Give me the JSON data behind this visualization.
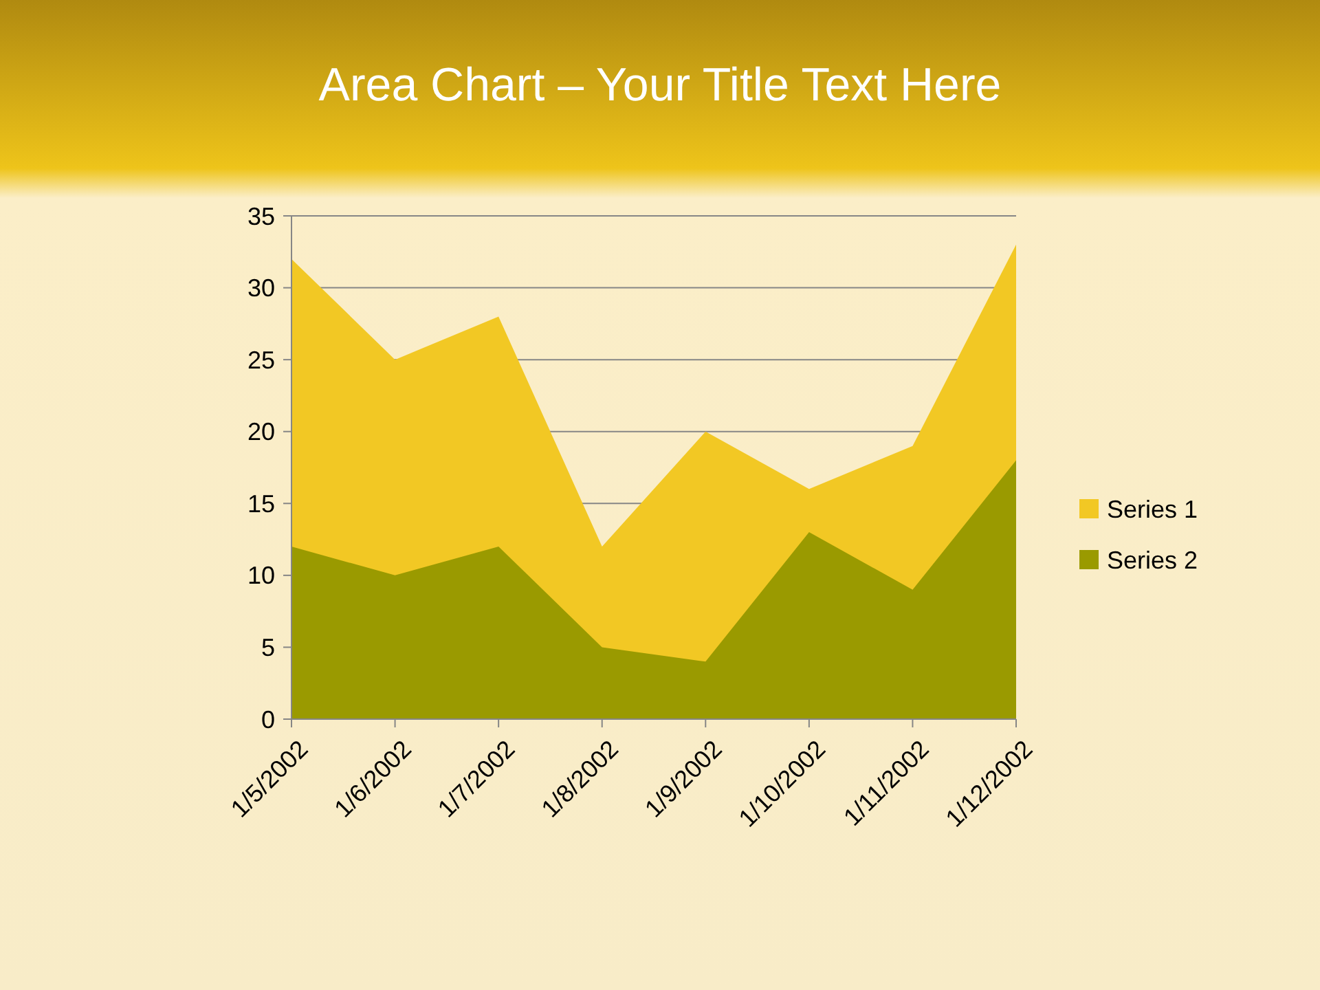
{
  "chart_data": {
    "type": "area",
    "title": "Area Chart – Your Title Text Here",
    "categories": [
      "1/5/2002",
      "1/6/2002",
      "1/7/2002",
      "1/8/2002",
      "1/9/2002",
      "1/10/2002",
      "1/11/2002",
      "1/12/2002"
    ],
    "series": [
      {
        "name": "Series 1",
        "color": "#f2c824",
        "values": [
          32,
          25,
          28,
          12,
          20,
          16,
          19,
          33
        ]
      },
      {
        "name": "Series 2",
        "color": "#9a9a00",
        "values": [
          12,
          10,
          12,
          5,
          4,
          13,
          9,
          18
        ]
      }
    ],
    "ylim": [
      0,
      35
    ],
    "yticks": [
      0,
      5,
      10,
      15,
      20,
      25,
      30,
      35
    ],
    "grid": "y",
    "legend": "right"
  }
}
